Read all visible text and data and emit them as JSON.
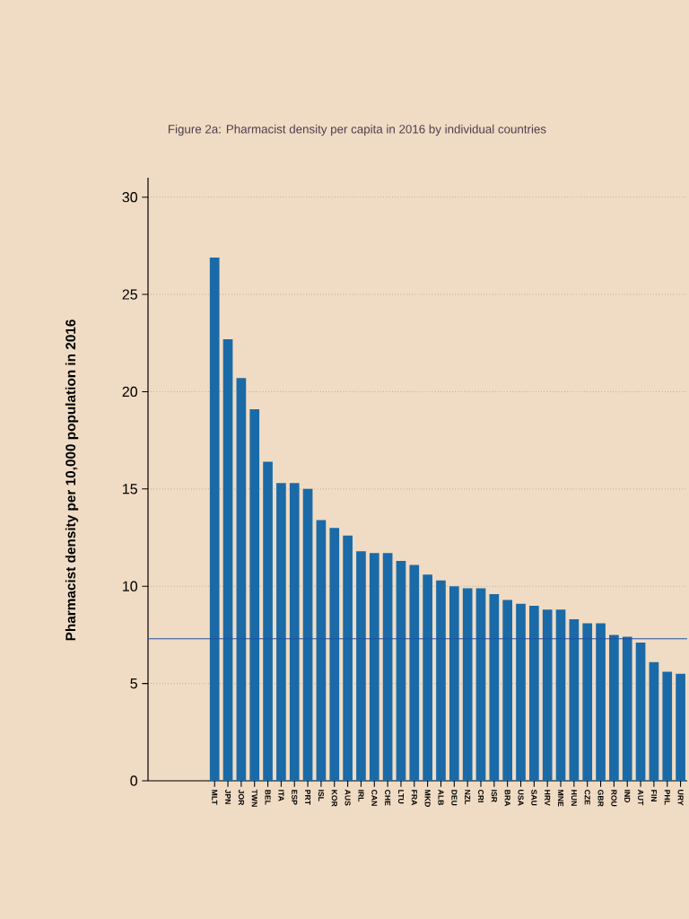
{
  "chart_data": {
    "type": "bar",
    "title": "Figure 2a: Pharmacist density per capita in 2016 by individual countries",
    "ylabel": "Pharmacist density per 10,000 population in 2016",
    "categories": [
      "MLT",
      "JPN",
      "JOR",
      "TWN",
      "BEL",
      "ITA",
      "ESP",
      "PRT",
      "ISL",
      "KOR",
      "AUS",
      "IRL",
      "CAN",
      "CHE",
      "LTU",
      "FRA",
      "MKD",
      "ALB",
      "DEU",
      "NZL",
      "CRI",
      "ISR",
      "BRA",
      "USA",
      "SAU",
      "HRV",
      "MNE",
      "HUN",
      "CZE",
      "GBR",
      "ROU",
      "IND",
      "AUT",
      "FIN",
      "PHL",
      "URY"
    ],
    "values": [
      26.9,
      22.7,
      20.7,
      19.1,
      16.4,
      15.3,
      15.3,
      15.0,
      13.4,
      13.0,
      12.6,
      11.8,
      11.7,
      11.7,
      11.3,
      11.1,
      10.6,
      10.3,
      10.0,
      9.9,
      9.9,
      9.6,
      9.3,
      9.1,
      9.0,
      8.8,
      8.8,
      8.3,
      8.1,
      8.1,
      7.5,
      7.4,
      7.1,
      6.1,
      5.6,
      5.5
    ],
    "color": "#1b6aa8",
    "ylim": [
      0,
      31
    ],
    "yticks": [
      0,
      5,
      10,
      15,
      20,
      25,
      30
    ],
    "grid": "y",
    "ref_lines": [
      {
        "axis": "y",
        "value": 7.3,
        "color": "#24509c"
      }
    ]
  }
}
